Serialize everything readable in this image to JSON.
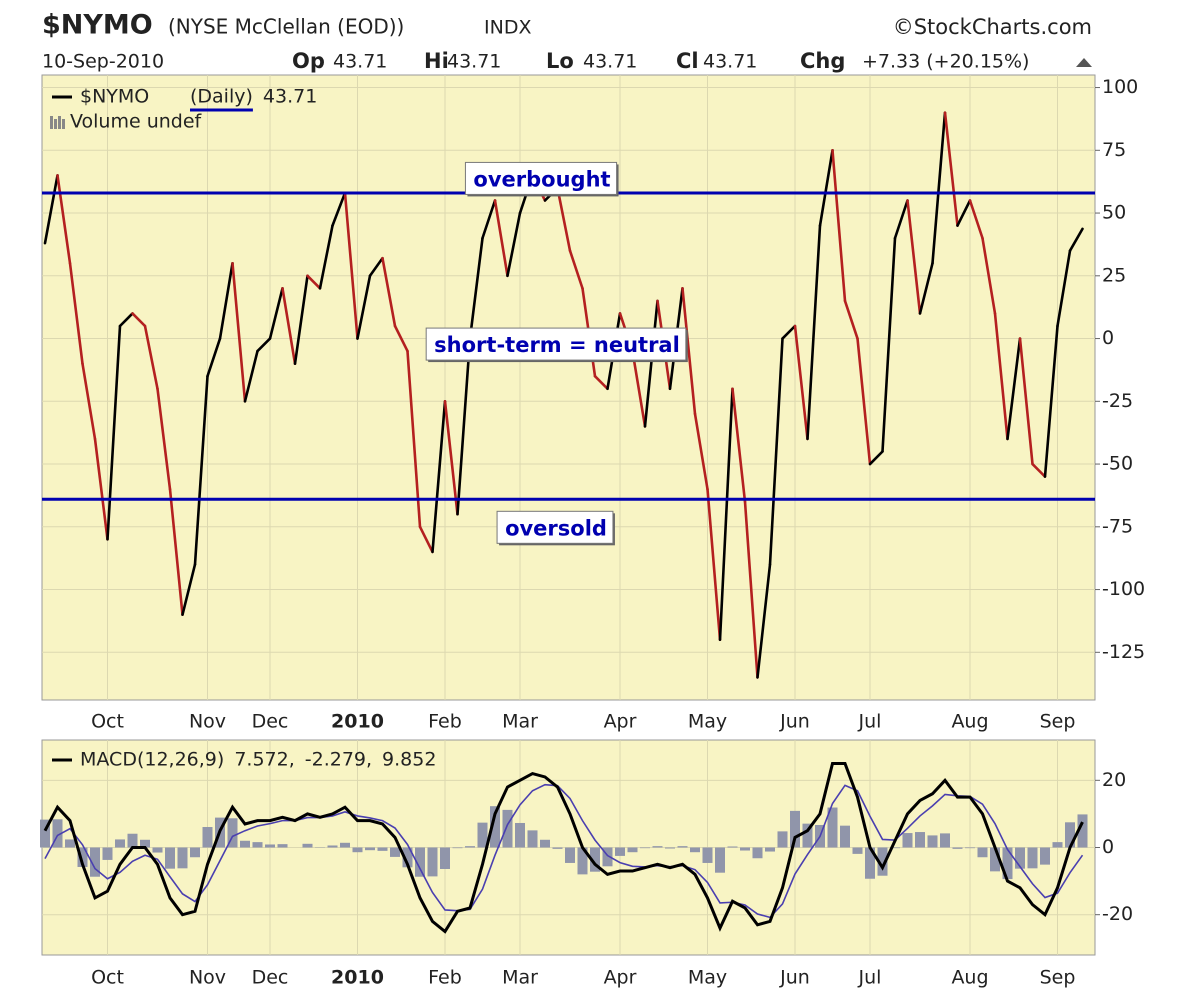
{
  "header": {
    "symbol": "$NYMO",
    "name": "(NYSE McClellan (EOD))",
    "exchange": "INDX",
    "source": "©StockCharts.com",
    "date": "10-Sep-2010",
    "quote": [
      {
        "label": "Op",
        "value": "43.71"
      },
      {
        "label": "Hi",
        "value": "43.71"
      },
      {
        "label": "Lo",
        "value": "43.71"
      },
      {
        "label": "Cl",
        "value": "43.71"
      },
      {
        "label": "Chg",
        "value": "+7.33 (+20.15%)"
      }
    ]
  },
  "chart_data": [
    {
      "type": "line",
      "period": "(Daily)",
      "last_value": "43.71",
      "subtitle": "Volume undef",
      "categories": [
        null,
        null,
        null,
        null,
        null,
        "Oct",
        null,
        null,
        null,
        null,
        null,
        null,
        null,
        "Nov",
        null,
        null,
        null,
        null,
        "Dec",
        null,
        null,
        null,
        null,
        null,
        null,
        "2010",
        null,
        null,
        null,
        null,
        null,
        null,
        "Feb",
        null,
        null,
        null,
        null,
        null,
        "Mar",
        null,
        null,
        null,
        null,
        null,
        null,
        null,
        "Apr",
        null,
        null,
        null,
        null,
        null,
        null,
        "May",
        null,
        null,
        null,
        null,
        null,
        null,
        "Jun",
        null,
        null,
        null,
        null,
        null,
        "Jul",
        null,
        null,
        null,
        null,
        null,
        null,
        null,
        "Aug",
        null,
        null,
        null,
        null,
        null,
        null,
        "Sep",
        null,
        null
      ],
      "series": [
        {
          "name": "$NYMO",
          "color": "#b42020",
          "up_color": "#000000",
          "values": [
            38,
            65,
            30,
            -10,
            -40,
            -80,
            5,
            10,
            5,
            -20,
            -60,
            -110,
            -90,
            -15,
            0,
            30,
            -25,
            -5,
            0,
            20,
            -10,
            25,
            20,
            45,
            58,
            0,
            25,
            32,
            5,
            -5,
            -75,
            -85,
            -25,
            -70,
            0,
            40,
            55,
            25,
            50,
            65,
            55,
            60,
            35,
            20,
            -15,
            -20,
            10,
            -5,
            -35,
            15,
            -20,
            20,
            -30,
            -60,
            -120,
            -20,
            -65,
            -135,
            -90,
            0,
            5,
            -40,
            45,
            75,
            15,
            0,
            -50,
            -45,
            40,
            55,
            10,
            30,
            90,
            45,
            55,
            40,
            10,
            -40,
            0,
            -50,
            -55,
            5,
            35,
            43.71
          ]
        }
      ],
      "reference_lines": [
        {
          "value": 58,
          "color": "#0000b0"
        },
        {
          "value": -64,
          "color": "#0000b0"
        }
      ],
      "annotations": [
        {
          "text": "overbought",
          "y": 63
        },
        {
          "text": "short-term = neutral",
          "y": -3
        },
        {
          "text": "oversold",
          "y": -76
        }
      ],
      "ylim": [
        -144,
        105
      ],
      "yticks": [
        100,
        75,
        50,
        25,
        0,
        -25,
        -50,
        -75,
        -100,
        -125
      ],
      "grid": true
    },
    {
      "type": "line",
      "title": "MACD(12,26,9)",
      "series": [
        {
          "type": "bar",
          "color": "#9095aa",
          "legend": "9.852",
          "values": [
            8.3,
            8.4,
            2.4,
            -5.8,
            -8.7,
            -3.7,
            2.4,
            4.1,
            2.3,
            -1.5,
            -6.3,
            -6.2,
            -2.9,
            6.1,
            8.9,
            8.7,
            2.0,
            1.6,
            0.9,
            1.0,
            0,
            1.1,
            0.1,
            0.6,
            1.4,
            -1.4,
            -0.8,
            -1.0,
            -2.8,
            -5.9,
            -8.7,
            -8.6,
            -6.4,
            -0.2,
            0.4,
            7.4,
            12.3,
            11.2,
            7.3,
            5.1,
            2.3,
            -0.4,
            -4.6,
            -8.0,
            -7.2,
            -5.6,
            -2.5,
            -1.4,
            -0.2,
            0.4,
            -0.3,
            0.4,
            -1.4,
            -4.6,
            -7.5,
            0.3,
            -0.9,
            -3.2,
            -1.2,
            4.8,
            10.9,
            7.1,
            6.7,
            11.9,
            6.5,
            -1.9,
            -9.3,
            -8.4,
            -0.2,
            4.3,
            4.6,
            3.6,
            4.2,
            -0.4,
            -0.2,
            -2.9,
            -7.1,
            -9.4,
            -6.3,
            -6.2,
            -5.1,
            1.6,
            7.5,
            9.852
          ]
        },
        {
          "type": "line",
          "color": "#4a3fb0",
          "legend": "-2.279,",
          "values": [
            -3.3,
            3.6,
            5.6,
            0.8,
            -6.3,
            -9.3,
            -7.4,
            -4.1,
            -2.3,
            -3.5,
            -8.7,
            -13.8,
            -16.1,
            -11.1,
            -3.9,
            3.3,
            5.0,
            6.4,
            7.1,
            8.0,
            8.0,
            8.9,
            8.9,
            9.4,
            10.6,
            9.4,
            8.8,
            8.0,
            5.8,
            0.9,
            -6.3,
            -13.4,
            -18.6,
            -18.8,
            -18.4,
            -12.4,
            -2.3,
            6.8,
            12.7,
            16.9,
            18.7,
            18.4,
            14.6,
            8.0,
            2.2,
            -2.4,
            -4.5,
            -5.6,
            -5.8,
            -5.4,
            -5.7,
            -5.4,
            -6.6,
            -10.4,
            -16.5,
            -16.3,
            -17.1,
            -19.8,
            -20.8,
            -16.8,
            -7.9,
            -2.1,
            3.3,
            13.1,
            18.5,
            16.9,
            9.3,
            2.4,
            2.2,
            5.7,
            9.4,
            12.4,
            15.8,
            15.4,
            15.2,
            12.9,
            7.1,
            -0.6,
            -5.7,
            -10.8,
            -14.9,
            -13.6,
            -7.5,
            -2.279
          ]
        },
        {
          "type": "line",
          "color": "#000000",
          "legend": "7.572,",
          "values": [
            5,
            12,
            8,
            -5,
            -15,
            -13,
            -5,
            0,
            0,
            -5,
            -15,
            -20,
            -19,
            -5,
            5,
            12,
            7,
            8,
            8,
            9,
            8,
            10,
            9,
            10,
            12,
            8,
            8,
            7,
            3,
            -5,
            -15,
            -22,
            -25,
            -19,
            -18,
            -5,
            10,
            18,
            20,
            22,
            21,
            18,
            10,
            0,
            -5,
            -8,
            -7,
            -7,
            -6,
            -5,
            -6,
            -5,
            -8,
            -15,
            -24,
            -16,
            -18,
            -23,
            -22,
            -12,
            3,
            5,
            10,
            25,
            25,
            15,
            0,
            -6,
            2,
            10,
            14,
            16,
            20,
            15,
            15,
            10,
            0,
            -10,
            -12,
            -17,
            -20,
            -12,
            0,
            7.572
          ]
        }
      ],
      "ylim": [
        -32,
        32
      ],
      "yticks": [
        20,
        0,
        -20
      ],
      "grid": true
    }
  ]
}
